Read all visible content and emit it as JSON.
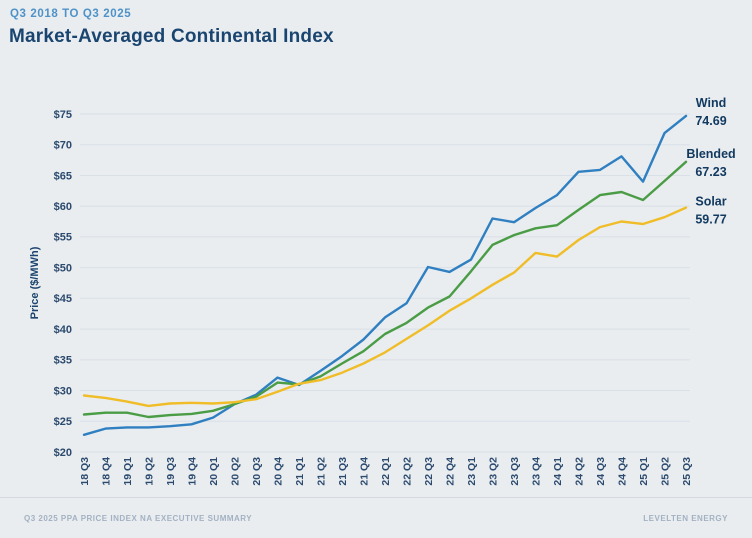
{
  "header": {
    "eyebrow": "Q3 2018 TO Q3 2025",
    "title": "Market-Averaged Continental Index"
  },
  "footer": {
    "left": "Q3 2025 PPA PRICE INDEX NA EXECUTIVE SUMMARY",
    "right": "LEVELTEN ENERGY"
  },
  "colors": {
    "background": "#e9edf0",
    "gridline": "#d9e0e7",
    "axis_text": "#2c4a6e",
    "heading": "#1a4570",
    "eyebrow": "#4e92c8",
    "wind": "#2f7fc1",
    "blended": "#4a9c45",
    "solar": "#f0bd28"
  },
  "chart_data": {
    "type": "line",
    "title": "Market-Averaged Continental Index",
    "xlabel": "",
    "ylabel": "Price ($/MWh)",
    "ylim": [
      20,
      75
    ],
    "ytick_step": 5,
    "ytick_prefix": "$",
    "grid": true,
    "legend_position": "right-end-labels",
    "categories": [
      "18 Q3",
      "18 Q4",
      "19 Q1",
      "19 Q2",
      "19 Q3",
      "19 Q4",
      "20 Q1",
      "20 Q2",
      "20 Q3",
      "20 Q4",
      "21 Q1",
      "21 Q2",
      "21 Q3",
      "21 Q4",
      "22 Q1",
      "22 Q2",
      "22 Q3",
      "22 Q4",
      "23 Q1",
      "23 Q2",
      "23 Q3",
      "23 Q4",
      "24 Q1",
      "24 Q2",
      "24 Q3",
      "24 Q4",
      "25 Q1",
      "25 Q2",
      "25 Q3"
    ],
    "series": [
      {
        "name": "Wind",
        "end_label": "74.69",
        "color": "#2f7fc1",
        "values": [
          22.8,
          23.8,
          24.0,
          24.0,
          24.2,
          24.5,
          25.6,
          27.8,
          29.3,
          32.1,
          30.9,
          33.2,
          35.6,
          38.3,
          41.9,
          44.2,
          50.1,
          49.3,
          51.3,
          58.0,
          57.4,
          59.7,
          61.8,
          65.6,
          65.9,
          68.1,
          64.0,
          71.9,
          74.69
        ]
      },
      {
        "name": "Blended",
        "end_label": "67.23",
        "color": "#4a9c45",
        "values": [
          26.1,
          26.4,
          26.4,
          25.7,
          26.0,
          26.2,
          26.7,
          27.8,
          29.0,
          31.3,
          31.0,
          32.3,
          34.4,
          36.4,
          39.2,
          41.0,
          43.5,
          45.3,
          49.4,
          53.7,
          55.3,
          56.4,
          56.9,
          59.4,
          61.8,
          62.3,
          61.0,
          64.1,
          67.23
        ]
      },
      {
        "name": "Solar",
        "end_label": "59.77",
        "color": "#f0bd28",
        "values": [
          29.2,
          28.8,
          28.2,
          27.5,
          27.9,
          28.0,
          27.9,
          28.1,
          28.6,
          29.8,
          31.1,
          31.7,
          32.9,
          34.4,
          36.2,
          38.4,
          40.6,
          43.0,
          45.0,
          47.2,
          49.2,
          52.4,
          51.8,
          54.5,
          56.6,
          57.5,
          57.1,
          58.2,
          59.77
        ]
      }
    ]
  }
}
